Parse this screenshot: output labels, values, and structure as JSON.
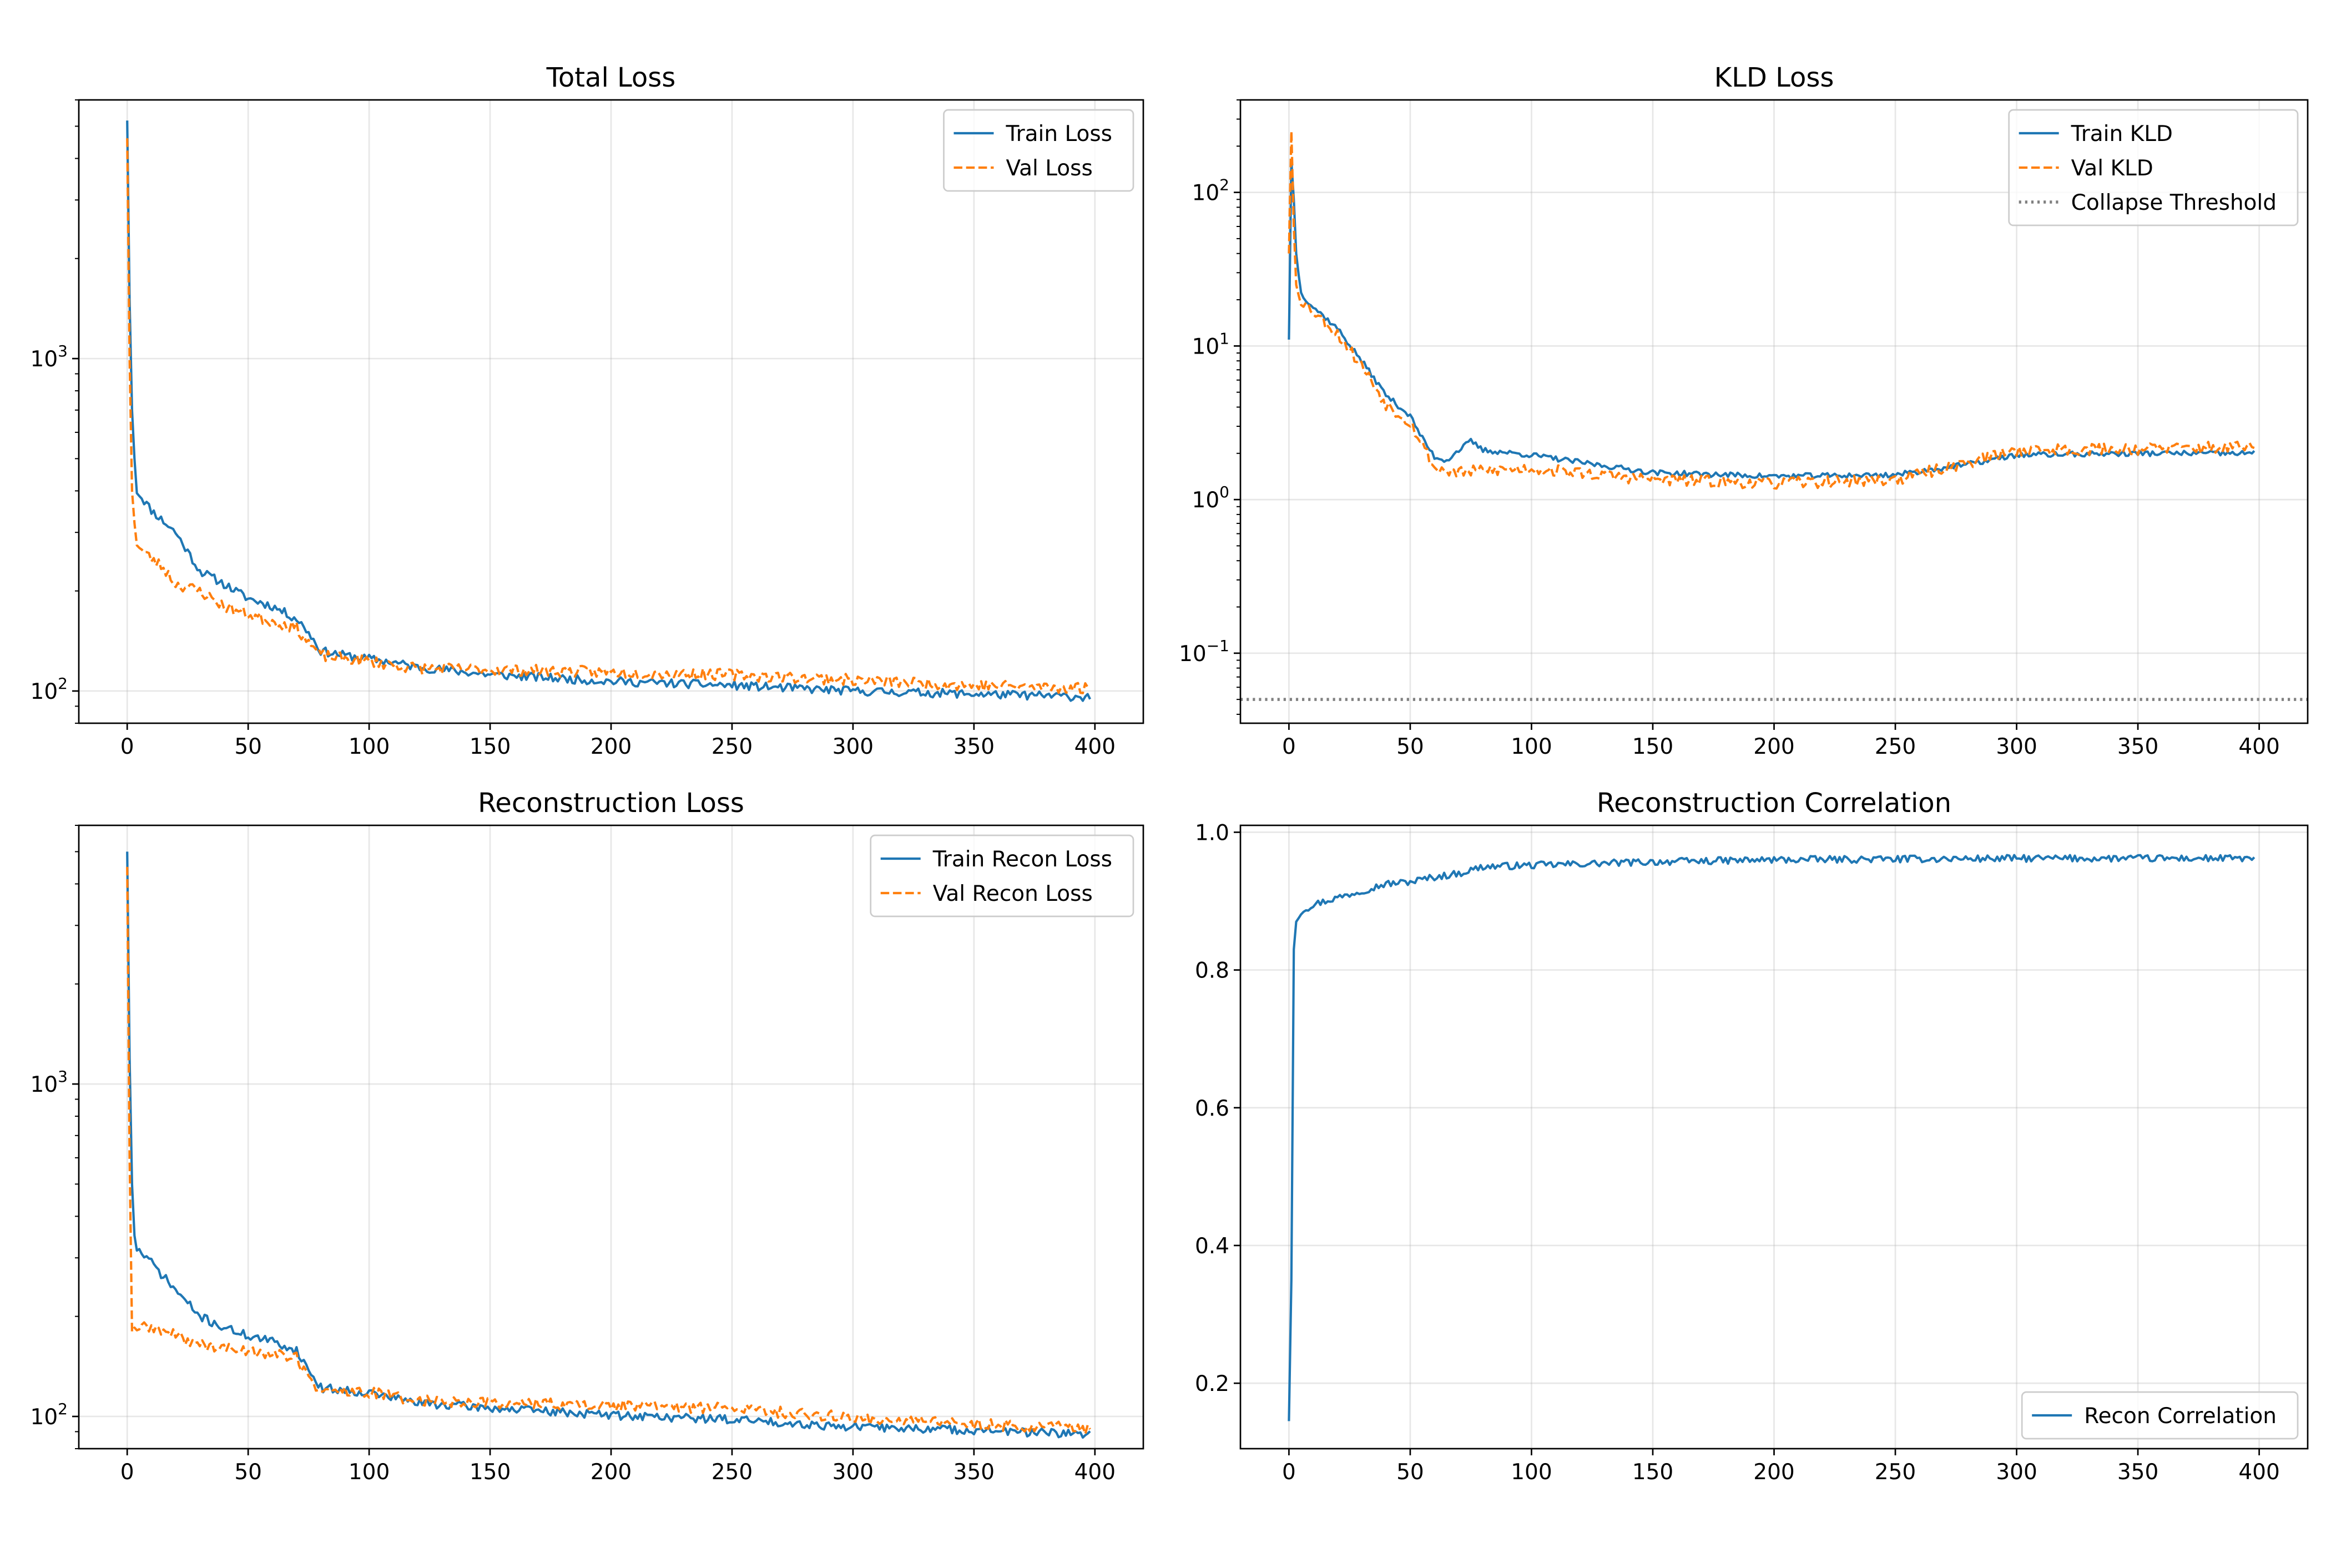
{
  "colors": {
    "train": "#1f77b4",
    "val": "#ff7f0e",
    "threshold": "#808080",
    "grid": "#b0b0b0"
  },
  "chart_data": [
    {
      "id": "total",
      "type": "line",
      "title": "Total Loss",
      "xlabel": "",
      "ylabel": "",
      "yscale": "log",
      "xlim": [
        -20,
        420
      ],
      "ylim": [
        80,
        6000
      ],
      "xticks": [
        0,
        50,
        100,
        150,
        200,
        250,
        300,
        350,
        400
      ],
      "yticks": [
        {
          "value": 100,
          "base": "10",
          "exp": "2"
        },
        {
          "value": 1000,
          "base": "10",
          "exp": "3"
        }
      ],
      "legend_position": "top-right",
      "grid": true,
      "series": [
        {
          "name": "Train Loss",
          "style": "solid",
          "color": "#1f77b4",
          "anchors": [
            [
              0,
              5200
            ],
            [
              1,
              1500
            ],
            [
              2,
              700
            ],
            [
              3,
              500
            ],
            [
              4,
              400
            ],
            [
              10,
              350
            ],
            [
              20,
              300
            ],
            [
              30,
              230
            ],
            [
              40,
              210
            ],
            [
              50,
              190
            ],
            [
              60,
              180
            ],
            [
              70,
              165
            ],
            [
              75,
              150
            ],
            [
              80,
              132
            ],
            [
              90,
              128
            ],
            [
              100,
              125
            ],
            [
              110,
              122
            ],
            [
              120,
              118
            ],
            [
              150,
              112
            ],
            [
              200,
              107
            ],
            [
              250,
              104
            ],
            [
              300,
              100
            ],
            [
              350,
              98
            ],
            [
              398,
              96
            ]
          ],
          "noise": 0.03,
          "seed": 11
        },
        {
          "name": "Val Loss",
          "style": "dashed",
          "color": "#ff7f0e",
          "anchors": [
            [
              0,
              4600
            ],
            [
              1,
              1000
            ],
            [
              2,
              400
            ],
            [
              3,
              320
            ],
            [
              4,
              280
            ],
            [
              6,
              265
            ],
            [
              10,
              250
            ],
            [
              15,
              235
            ],
            [
              20,
              210
            ],
            [
              30,
              200
            ],
            [
              40,
              180
            ],
            [
              50,
              170
            ],
            [
              60,
              162
            ],
            [
              70,
              155
            ],
            [
              75,
              140
            ],
            [
              80,
              128
            ],
            [
              90,
              125
            ],
            [
              100,
              123
            ],
            [
              120,
              117
            ],
            [
              150,
              116
            ],
            [
              200,
              114
            ],
            [
              250,
              112
            ],
            [
              300,
              108
            ],
            [
              350,
              104
            ],
            [
              398,
              102
            ]
          ],
          "noise": 0.04,
          "seed": 23
        }
      ]
    },
    {
      "id": "kld",
      "type": "line",
      "title": "KLD Loss",
      "xlabel": "",
      "ylabel": "",
      "yscale": "log",
      "xlim": [
        -20,
        420
      ],
      "ylim": [
        0.035,
        400
      ],
      "xticks": [
        0,
        50,
        100,
        150,
        200,
        250,
        300,
        350,
        400
      ],
      "yticks": [
        {
          "value": 0.1,
          "base": "10",
          "exp": "−1"
        },
        {
          "value": 1,
          "base": "10",
          "exp": "0"
        },
        {
          "value": 10,
          "base": "10",
          "exp": "1"
        },
        {
          "value": 100,
          "base": "10",
          "exp": "2"
        }
      ],
      "legend_position": "top-right",
      "grid": true,
      "series": [
        {
          "name": "Train KLD",
          "style": "solid",
          "color": "#1f77b4",
          "anchors": [
            [
              0,
              11
            ],
            [
              1,
              160
            ],
            [
              2,
              90
            ],
            [
              3,
              40
            ],
            [
              5,
              22
            ],
            [
              10,
              18
            ],
            [
              20,
              13
            ],
            [
              30,
              8
            ],
            [
              40,
              4.8
            ],
            [
              50,
              3.5
            ],
            [
              55,
              2.5
            ],
            [
              60,
              1.9
            ],
            [
              65,
              1.8
            ],
            [
              70,
              2.1
            ],
            [
              75,
              2.4
            ],
            [
              80,
              2.1
            ],
            [
              100,
              1.95
            ],
            [
              120,
              1.75
            ],
            [
              150,
              1.5
            ],
            [
              200,
              1.42
            ],
            [
              250,
              1.45
            ],
            [
              280,
              1.7
            ],
            [
              300,
              1.95
            ],
            [
              350,
              2.0
            ],
            [
              398,
              2.0
            ]
          ],
          "noise": 0.04,
          "seed": 37
        },
        {
          "name": "Val KLD",
          "style": "dashed",
          "color": "#ff7f0e",
          "anchors": [
            [
              0,
              40
            ],
            [
              1,
              250
            ],
            [
              2,
              60
            ],
            [
              3,
              25
            ],
            [
              5,
              20
            ],
            [
              10,
              17
            ],
            [
              20,
              12
            ],
            [
              30,
              7.5
            ],
            [
              40,
              4.2
            ],
            [
              50,
              3.2
            ],
            [
              55,
              2.3
            ],
            [
              60,
              1.6
            ],
            [
              70,
              1.5
            ],
            [
              80,
              1.55
            ],
            [
              100,
              1.6
            ],
            [
              150,
              1.35
            ],
            [
              200,
              1.28
            ],
            [
              250,
              1.35
            ],
            [
              280,
              1.75
            ],
            [
              300,
              2.1
            ],
            [
              350,
              2.15
            ],
            [
              398,
              2.2
            ]
          ],
          "noise": 0.09,
          "seed": 53
        },
        {
          "name": "Collapse Threshold",
          "style": "dotted",
          "color": "#808080",
          "constant": 0.05
        }
      ]
    },
    {
      "id": "recon",
      "type": "line",
      "title": "Reconstruction Loss",
      "xlabel": "",
      "ylabel": "",
      "yscale": "log",
      "xlim": [
        -20,
        420
      ],
      "ylim": [
        80,
        6000
      ],
      "xticks": [
        0,
        50,
        100,
        150,
        200,
        250,
        300,
        350,
        400
      ],
      "yticks": [
        {
          "value": 100,
          "base": "10",
          "exp": "2"
        },
        {
          "value": 1000,
          "base": "10",
          "exp": "3"
        }
      ],
      "legend_position": "top-right",
      "grid": true,
      "series": [
        {
          "name": "Train Recon Loss",
          "style": "solid",
          "color": "#1f77b4",
          "anchors": [
            [
              0,
              5000
            ],
            [
              1,
              1200
            ],
            [
              2,
              500
            ],
            [
              3,
              350
            ],
            [
              4,
              320
            ],
            [
              10,
              290
            ],
            [
              20,
              240
            ],
            [
              30,
              200
            ],
            [
              40,
              185
            ],
            [
              50,
              175
            ],
            [
              60,
              168
            ],
            [
              70,
              158
            ],
            [
              75,
              138
            ],
            [
              80,
              122
            ],
            [
              100,
              118
            ],
            [
              120,
              110
            ],
            [
              150,
              106
            ],
            [
              200,
              101
            ],
            [
              250,
              98
            ],
            [
              300,
              93
            ],
            [
              350,
              91
            ],
            [
              398,
              88
            ]
          ],
          "noise": 0.03,
          "seed": 71
        },
        {
          "name": "Val Recon Loss",
          "style": "dashed",
          "color": "#ff7f0e",
          "anchors": [
            [
              0,
              4500
            ],
            [
              1,
              600
            ],
            [
              2,
              180
            ],
            [
              3,
              185
            ],
            [
              10,
              185
            ],
            [
              20,
              175
            ],
            [
              30,
              165
            ],
            [
              40,
              160
            ],
            [
              50,
              158
            ],
            [
              60,
              155
            ],
            [
              70,
              150
            ],
            [
              75,
              130
            ],
            [
              80,
              120
            ],
            [
              100,
              118
            ],
            [
              120,
              112
            ],
            [
              150,
              110
            ],
            [
              200,
              108
            ],
            [
              250,
              106
            ],
            [
              300,
              99
            ],
            [
              350,
              95
            ],
            [
              398,
              92
            ]
          ],
          "noise": 0.04,
          "seed": 89
        }
      ]
    },
    {
      "id": "corr",
      "type": "line",
      "title": "Reconstruction Correlation",
      "xlabel": "",
      "ylabel": "",
      "yscale": "linear",
      "xlim": [
        -20,
        420
      ],
      "ylim": [
        0.105,
        1.01
      ],
      "xticks": [
        0,
        50,
        100,
        150,
        200,
        250,
        300,
        350,
        400
      ],
      "yticks": [
        {
          "value": 0.2,
          "text": "0.2"
        },
        {
          "value": 0.4,
          "text": "0.4"
        },
        {
          "value": 0.6,
          "text": "0.6"
        },
        {
          "value": 0.8,
          "text": "0.8"
        },
        {
          "value": 1.0,
          "text": "1.0"
        }
      ],
      "legend_position": "bottom-right",
      "grid": true,
      "series": [
        {
          "name": "Recon Correlation",
          "style": "solid",
          "color": "#1f77b4",
          "anchors": [
            [
              0,
              0.145
            ],
            [
              1,
              0.35
            ],
            [
              2,
              0.83
            ],
            [
              3,
              0.87
            ],
            [
              5,
              0.885
            ],
            [
              10,
              0.895
            ],
            [
              20,
              0.905
            ],
            [
              30,
              0.915
            ],
            [
              40,
              0.925
            ],
            [
              50,
              0.928
            ],
            [
              60,
              0.935
            ],
            [
              70,
              0.94
            ],
            [
              80,
              0.95
            ],
            [
              100,
              0.952
            ],
            [
              150,
              0.957
            ],
            [
              200,
              0.96
            ],
            [
              250,
              0.961
            ],
            [
              300,
              0.962
            ],
            [
              350,
              0.962
            ],
            [
              398,
              0.962
            ]
          ],
          "noise": 0.005,
          "noise_type": "absolute",
          "seed": 97
        }
      ]
    }
  ]
}
